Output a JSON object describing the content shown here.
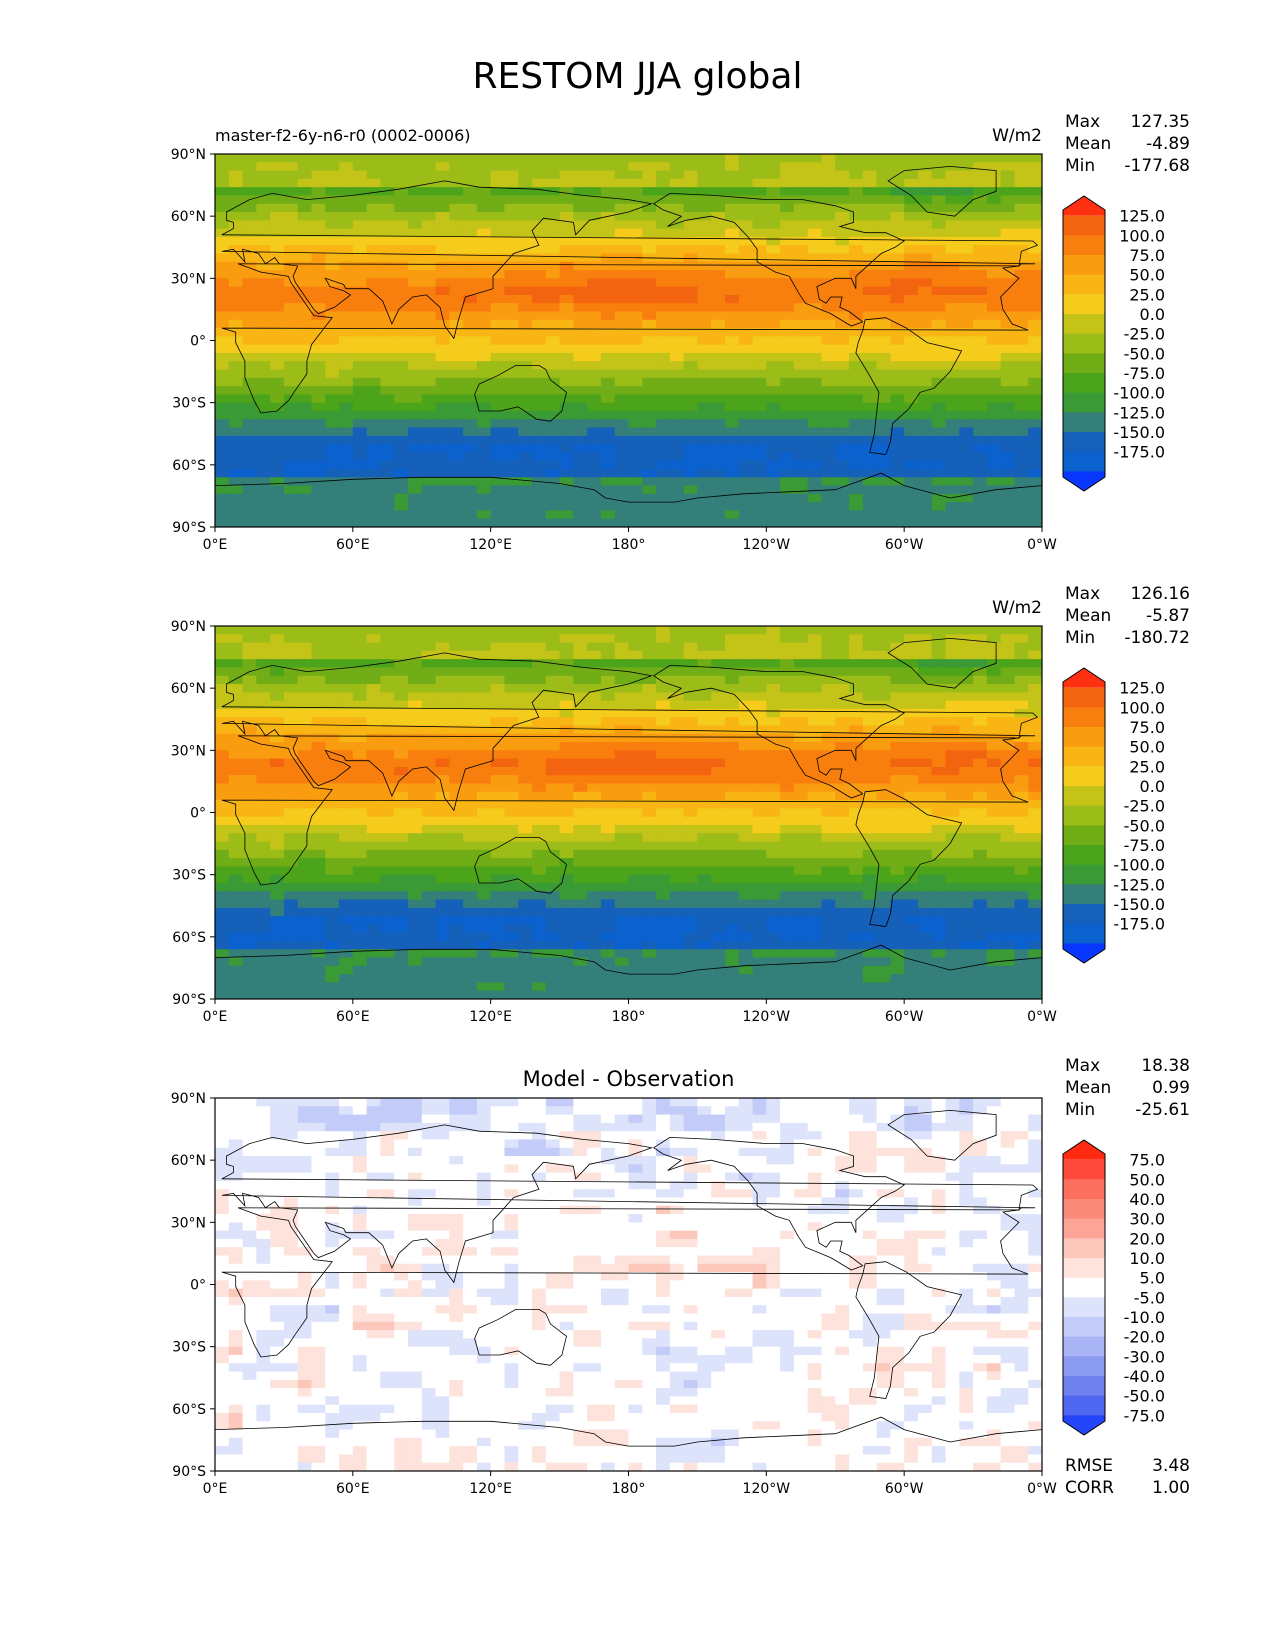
{
  "title": "RESTOM JJA global",
  "axes": {
    "lat_labels": [
      "90°N",
      "60°N",
      "30°N",
      "0°",
      "30°S",
      "60°S",
      "90°S"
    ],
    "lon_labels": [
      "0°E",
      "60°E",
      "120°E",
      "180°",
      "120°W",
      "60°W",
      "0°W"
    ]
  },
  "panels": [
    {
      "id": "test",
      "subtitle": "master-f2-6y-n6-r0 (0002-0006)",
      "center_title": "",
      "units": "W/m2",
      "stats": [
        {
          "label": "Max",
          "value": "127.35"
        },
        {
          "label": "Mean",
          "value": "-4.89"
        },
        {
          "label": "Min",
          "value": "-177.68"
        }
      ],
      "extra_stats": [],
      "colorbar": {
        "colors": [
          "#ff3010",
          "#f26410",
          "#f87f0e",
          "#fa9c10",
          "#f8b514",
          "#f5cc1c",
          "#c3c318",
          "#9cbc18",
          "#71ad16",
          "#4ca41a",
          "#3a9a35",
          "#347f7a",
          "#1560b8",
          "#0b62cf",
          "#0a37ff"
        ],
        "tick_labels": [
          "125.0",
          "100.0",
          "75.0",
          "50.0",
          "25.0",
          "0.0",
          "-25.0",
          "-50.0",
          "-75.0",
          "-100.0",
          "-125.0",
          "-150.0",
          "-175.0"
        ]
      },
      "field_summary": {
        "max": 127.35,
        "mean": -4.89,
        "min": -177.68
      }
    },
    {
      "id": "reference",
      "subtitle": "",
      "center_title": "",
      "units": "W/m2",
      "stats": [
        {
          "label": "Max",
          "value": "126.16"
        },
        {
          "label": "Mean",
          "value": "-5.87"
        },
        {
          "label": "Min",
          "value": "-180.72"
        }
      ],
      "extra_stats": [],
      "colorbar": {
        "colors": [
          "#ff3010",
          "#f26410",
          "#f87f0e",
          "#fa9c10",
          "#f8b514",
          "#f5cc1c",
          "#c3c318",
          "#9cbc18",
          "#71ad16",
          "#4ca41a",
          "#3a9a35",
          "#347f7a",
          "#1560b8",
          "#0b62cf",
          "#0a37ff"
        ],
        "tick_labels": [
          "125.0",
          "100.0",
          "75.0",
          "50.0",
          "25.0",
          "0.0",
          "-25.0",
          "-50.0",
          "-75.0",
          "-100.0",
          "-125.0",
          "-150.0",
          "-175.0"
        ]
      },
      "field_summary": {
        "max": 126.16,
        "mean": -5.87,
        "min": -180.72
      }
    },
    {
      "id": "difference",
      "subtitle": "",
      "center_title": "Model - Observation",
      "units": "",
      "stats": [
        {
          "label": "Max",
          "value": "18.38"
        },
        {
          "label": "Mean",
          "value": "0.99"
        },
        {
          "label": "Min",
          "value": "-25.61"
        }
      ],
      "extra_stats": [
        {
          "label": "RMSE",
          "value": "3.48"
        },
        {
          "label": "CORR",
          "value": "1.00"
        }
      ],
      "colorbar": {
        "colors": [
          "#ff2a10",
          "#fe4a3a",
          "#fc6e5e",
          "#fb8a7a",
          "#fca596",
          "#fdc8bc",
          "#fde3dc",
          "#ffffff",
          "#dde3fa",
          "#c3ccf8",
          "#a9b5f4",
          "#8a9af0",
          "#6d80ee",
          "#4e66f0",
          "#2545fb"
        ],
        "tick_labels": [
          "75.0",
          "50.0",
          "40.0",
          "30.0",
          "20.0",
          "10.0",
          "5.0",
          "-5.0",
          "-10.0",
          "-20.0",
          "-30.0",
          "-40.0",
          "-50.0",
          "-75.0"
        ]
      },
      "field_summary": {
        "max": 18.38,
        "mean": 0.99,
        "min": -25.61
      }
    }
  ]
}
